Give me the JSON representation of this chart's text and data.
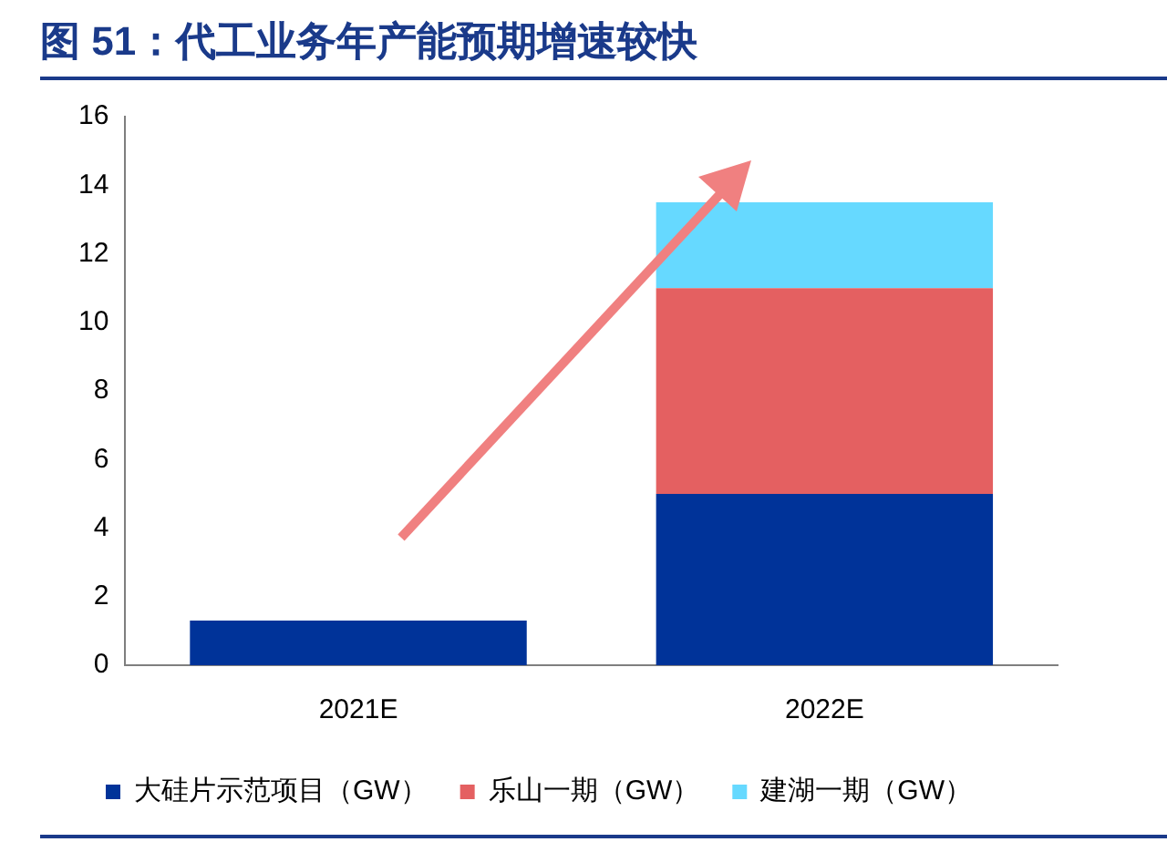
{
  "chart_data": {
    "type": "bar",
    "title": "图 51：代工业务年产能预期增速较快",
    "categories": [
      "2021E",
      "2022E"
    ],
    "stacked": true,
    "series": [
      {
        "name": "大硅片示范项目（GW）",
        "color": "#003399",
        "values": [
          1.3,
          5
        ]
      },
      {
        "name": "乐山一期（GW）",
        "color": "#e46061",
        "values": [
          null,
          6
        ]
      },
      {
        "name": "建湖一期（GW）",
        "color": "#66d9ff",
        "values": [
          null,
          2.5
        ]
      }
    ],
    "ylim": [
      0,
      16
    ],
    "yticks": [
      0,
      2,
      4,
      6,
      8,
      10,
      12,
      14,
      16
    ],
    "grid": false,
    "legend": "bottom"
  }
}
